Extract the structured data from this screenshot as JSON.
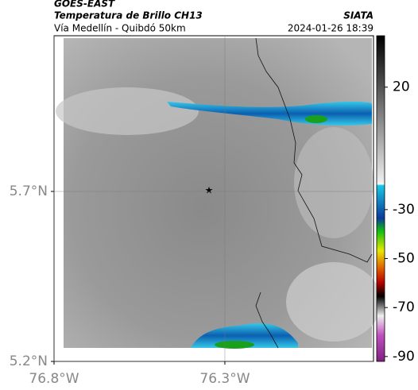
{
  "header": {
    "source": "GOES-EAST",
    "title": "Temperatura de Brillo CH13",
    "subtitle": "Vía Medellín - Quibdó 50km",
    "agency": "SIATA",
    "datetime": "2024-01-26 18:39"
  },
  "map": {
    "lat_lim": [
      5.2,
      6.158
    ],
    "lon_lim": [
      -76.8,
      -75.865
    ],
    "lat_ticks": [
      {
        "value": 5.7,
        "label": "5.7°N"
      },
      {
        "value": 5.2,
        "label": "5.2°N"
      }
    ],
    "lon_ticks": [
      {
        "value": -76.8,
        "label": "76.8°W"
      },
      {
        "value": -76.3,
        "label": "76.3°W"
      }
    ],
    "colorbar": {
      "lim": [
        -92,
        41
      ],
      "ticks": [
        20,
        -30,
        -50,
        -70,
        -90
      ]
    }
  }
}
